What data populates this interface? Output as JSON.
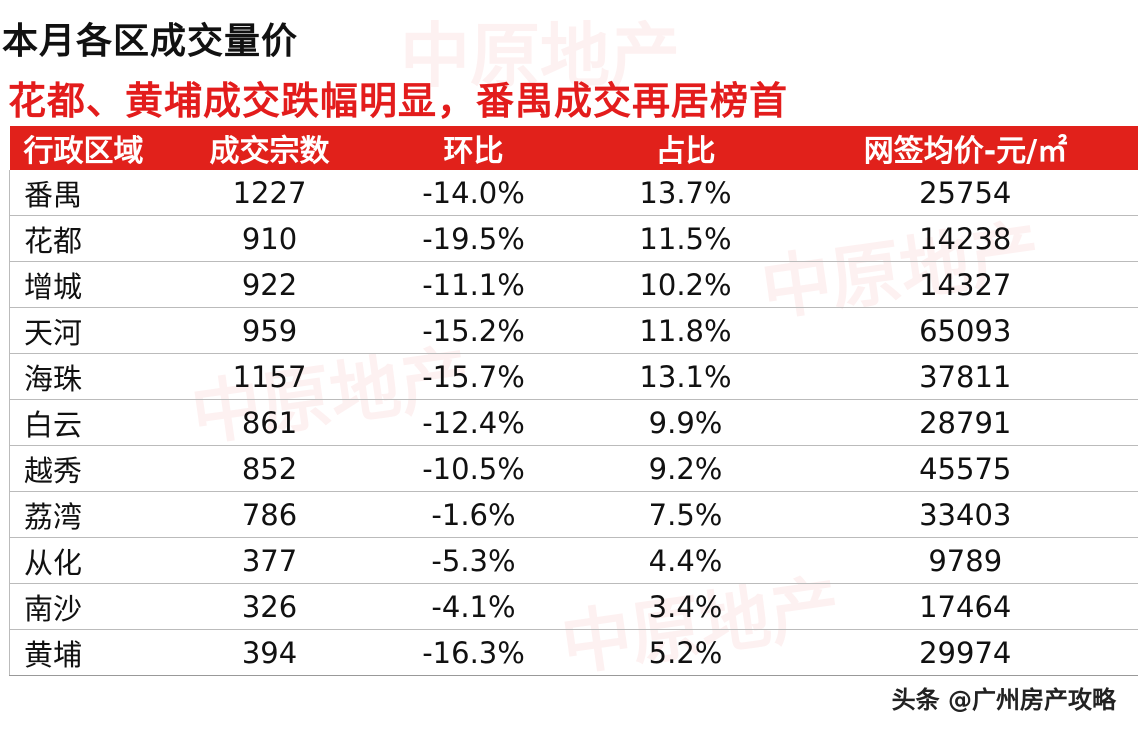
{
  "title": "本月各区成交量价",
  "subtitle": "花都、黄埔成交跌幅明显，番禺成交再居榜首",
  "watermark": "中原地产",
  "table": {
    "headers": [
      "行政区域",
      "成交宗数",
      "环比",
      "占比",
      "网签均价-元/㎡"
    ],
    "rows": [
      [
        "番禺",
        "1227",
        "-14.0%",
        "13.7%",
        "25754"
      ],
      [
        "花都",
        "910",
        "-19.5%",
        "11.5%",
        "14238"
      ],
      [
        "增城",
        "922",
        "-11.1%",
        "10.2%",
        "14327"
      ],
      [
        "天河",
        "959",
        "-15.2%",
        "11.8%",
        "65093"
      ],
      [
        "海珠",
        "1157",
        "-15.7%",
        "13.1%",
        "37811"
      ],
      [
        "白云",
        "861",
        "-12.4%",
        "9.9%",
        "28791"
      ],
      [
        "越秀",
        "852",
        "-10.5%",
        "9.2%",
        "45575"
      ],
      [
        "荔湾",
        "786",
        "-1.6%",
        "7.5%",
        "33403"
      ],
      [
        "从化",
        "377",
        "-5.3%",
        "4.4%",
        "9789"
      ],
      [
        "南沙",
        "326",
        "-4.1%",
        "3.4%",
        "17464"
      ],
      [
        "黄埔",
        "394",
        "-16.3%",
        "5.2%",
        "29974"
      ]
    ]
  },
  "credit": "头条 @广州房产攻略",
  "colors": {
    "header_bg": "#e1211b",
    "subtitle": "#e31c1c"
  }
}
